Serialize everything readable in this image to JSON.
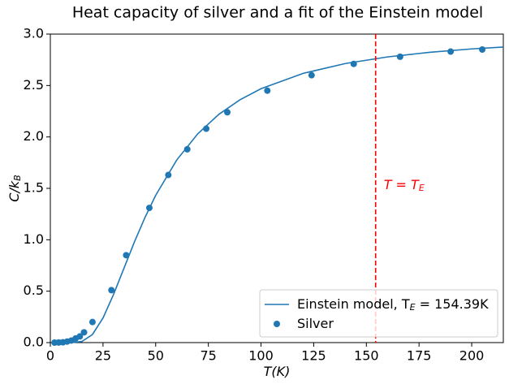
{
  "chart_data": {
    "type": "scatter-line",
    "title": "Heat capacity of silver and a fit of the Einstein model",
    "xlabel": {
      "text": "T(K)"
    },
    "ylabel": {
      "text": "C/k",
      "sub": "B"
    },
    "xlim": [
      0,
      215
    ],
    "ylim": [
      0,
      3
    ],
    "xticks": [
      0,
      25,
      50,
      75,
      100,
      125,
      150,
      175,
      200
    ],
    "yticks": [
      {
        "value": 0,
        "label": "0.0"
      },
      0.5,
      {
        "value": 1,
        "label": "1.0"
      },
      1.5,
      {
        "value": 2,
        "label": "2.0"
      },
      2.5,
      {
        "value": 3,
        "label": "3.0"
      }
    ],
    "legend": "lower right",
    "series": [
      {
        "kind": "line",
        "color": "#1f77b4",
        "name": {
          "text": "Einstein model, T",
          "sub": "E",
          "tail": " = 154.39K"
        },
        "x": [
          2,
          5,
          10,
          15,
          20,
          25,
          30,
          35,
          40,
          45,
          50,
          60,
          70,
          80,
          90,
          100,
          120,
          140,
          160,
          180,
          200,
          215
        ],
        "values": [
          0,
          0,
          0.0001,
          0.011,
          0.079,
          0.239,
          0.468,
          0.726,
          0.983,
          1.22,
          1.432,
          1.776,
          2.031,
          2.22,
          2.361,
          2.469,
          2.618,
          2.714,
          2.778,
          2.823,
          2.856,
          2.874
        ]
      },
      {
        "kind": "scatter",
        "color": "#1f77b4",
        "name": {
          "text": "Silver"
        },
        "x": [
          2,
          4,
          6,
          8,
          10,
          12,
          14,
          16,
          20,
          29,
          36,
          47,
          56,
          65,
          74,
          84,
          103,
          124,
          144,
          166,
          190,
          205
        ],
        "values": [
          0,
          0.001,
          0.003,
          0.01,
          0.02,
          0.04,
          0.06,
          0.1,
          0.2,
          0.51,
          0.85,
          1.31,
          1.63,
          1.88,
          2.08,
          2.24,
          2.45,
          2.6,
          2.71,
          2.78,
          2.83,
          2.85
        ]
      }
    ],
    "vline": {
      "x": 154.39,
      "color": "red",
      "label": {
        "text": "T = T",
        "sub": "E"
      }
    }
  }
}
